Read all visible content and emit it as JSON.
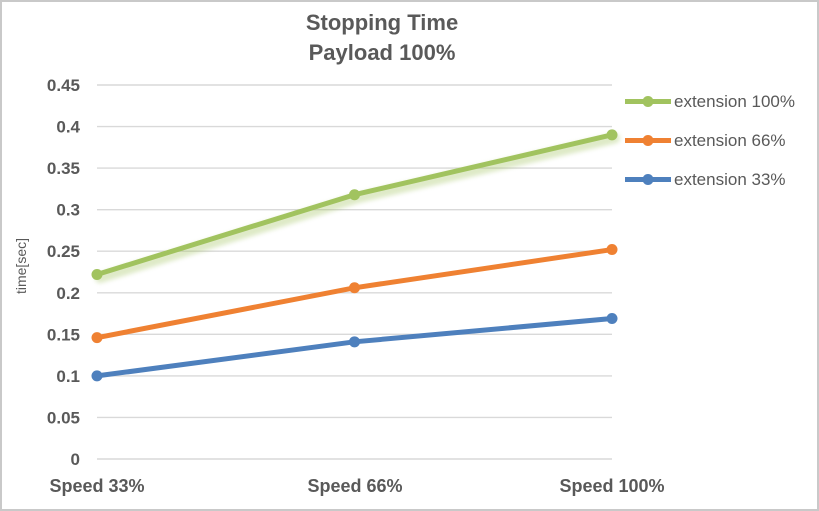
{
  "chart_data": {
    "type": "line",
    "title": "Stopping Time",
    "subtitle": "Payload 100%",
    "ylabel": "time[sec]",
    "categories": [
      "Speed 33%",
      "Speed 66%",
      "Speed 100%"
    ],
    "series": [
      {
        "name": "extension 100%",
        "values": [
          0.222,
          0.318,
          0.39
        ],
        "color": "#a1c35f",
        "glow": true
      },
      {
        "name": "extension 66%",
        "values": [
          0.146,
          0.206,
          0.252
        ],
        "color": "#ef8132",
        "glow": false
      },
      {
        "name": "extension 33%",
        "values": [
          0.1,
          0.141,
          0.169
        ],
        "color": "#4e80bd",
        "glow": false
      }
    ],
    "ylim": [
      0,
      0.45
    ],
    "ytick_step": 0.05,
    "ytick_labels": [
      "0",
      "0.05",
      "0.1",
      "0.15",
      "0.2",
      "0.25",
      "0.3",
      "0.35",
      "0.4",
      "0.45"
    ],
    "grid": true,
    "legend_position": "right",
    "gridline_color": "#d9d9d9",
    "text_color": "#595959"
  }
}
